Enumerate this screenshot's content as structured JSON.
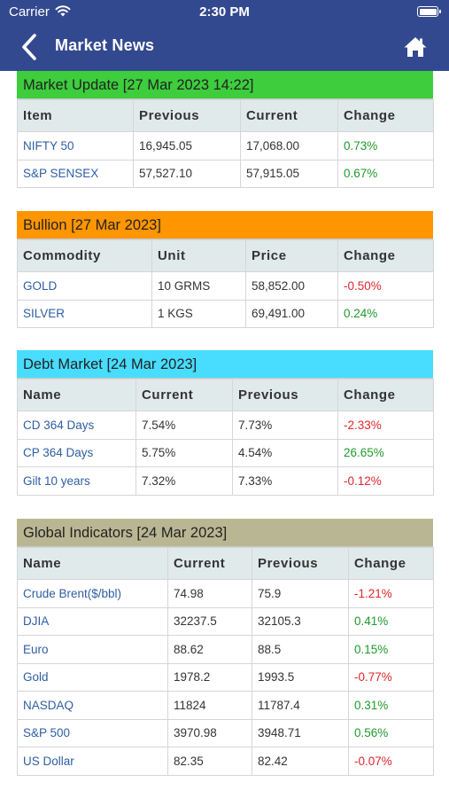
{
  "status_bar": {
    "carrier": "Carrier",
    "time": "2:30 PM"
  },
  "nav": {
    "title": "Market News",
    "back_icon": "chevron-left-icon",
    "home_icon": "home-icon"
  },
  "colors": {
    "header_bg": "#33498f",
    "market_update": "#3dcd3d",
    "bullion": "#ff9500",
    "debt_market": "#48dcff",
    "global_indicators": "#b9b793",
    "positive": "#1f9a2a",
    "negative": "#e0252a",
    "link": "#2f5ea3"
  },
  "market_update": {
    "title": "Market Update [27 Mar 2023 14:22]",
    "headers": [
      "Item",
      "Previous",
      "Current",
      "Change"
    ],
    "rows": [
      [
        "NIFTY 50",
        "16,945.05",
        "17,068.00",
        "0.73%"
      ],
      [
        "S&P SENSEX",
        "57,527.10",
        "57,915.05",
        "0.67%"
      ]
    ]
  },
  "bullion": {
    "title": "Bullion [27 Mar 2023]",
    "headers": [
      "Commodity",
      "Unit",
      "Price",
      "Change"
    ],
    "rows": [
      [
        "GOLD",
        "10 GRMS",
        "58,852.00",
        "-0.50%"
      ],
      [
        "SILVER",
        "1 KGS",
        "69,491.00",
        "0.24%"
      ]
    ]
  },
  "debt_market": {
    "title": "Debt Market [24 Mar 2023]",
    "headers": [
      "Name",
      "Current",
      "Previous",
      "Change"
    ],
    "rows": [
      [
        "CD 364 Days",
        "7.54%",
        "7.73%",
        "-2.33%"
      ],
      [
        "CP 364 Days",
        "5.75%",
        "4.54%",
        "26.65%"
      ],
      [
        "Gilt 10 years",
        "7.32%",
        "7.33%",
        "-0.12%"
      ]
    ]
  },
  "global_indicators": {
    "title": "Global Indicators [24 Mar 2023]",
    "headers": [
      "Name",
      "Current",
      "Previous",
      "Change"
    ],
    "rows": [
      [
        "Crude Brent($/bbl)",
        "74.98",
        "75.9",
        "-1.21%"
      ],
      [
        "DJIA",
        "32237.5",
        "32105.3",
        "0.41%"
      ],
      [
        "Euro",
        "88.62",
        "88.5",
        "0.15%"
      ],
      [
        "Gold",
        "1978.2",
        "1993.5",
        "-0.77%"
      ],
      [
        "NASDAQ",
        "11824",
        "11787.4",
        "0.31%"
      ],
      [
        "S&P 500",
        "3970.98",
        "3948.71",
        "0.56%"
      ],
      [
        "US Dollar",
        "82.35",
        "82.42",
        "-0.07%"
      ]
    ]
  }
}
